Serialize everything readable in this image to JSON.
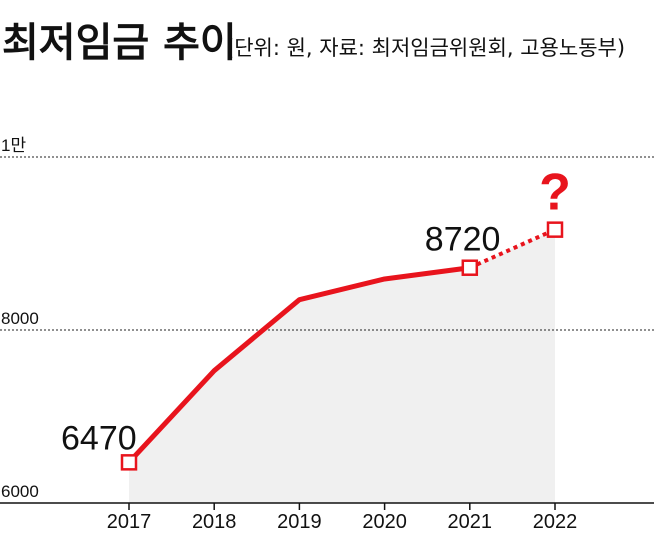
{
  "chart_data": {
    "type": "line",
    "title": "최저임금 추이",
    "subtitle": "(단위: 원, 자료: 최저임금위원회, 고용노동부)",
    "categories": [
      "2017",
      "2018",
      "2019",
      "2020",
      "2021",
      "2022"
    ],
    "values": [
      6470,
      7530,
      8350,
      8590,
      8720,
      9160
    ],
    "projected_from_index": 4,
    "ylim": [
      6000,
      10000
    ],
    "yticks": [
      {
        "value": 6000,
        "label": "6000"
      },
      {
        "value": 8000,
        "label": "8000"
      },
      {
        "value": 10000,
        "label": "1만"
      }
    ],
    "data_labels": [
      {
        "index": 0,
        "text": "6470"
      },
      {
        "index": 4,
        "text": "8720"
      },
      {
        "index": 5,
        "text": "?"
      }
    ],
    "grid": "dotted at 8000 and 10000",
    "colors": {
      "line": "#e8141d",
      "area": "#f0f0f0",
      "text": "#111111"
    }
  }
}
